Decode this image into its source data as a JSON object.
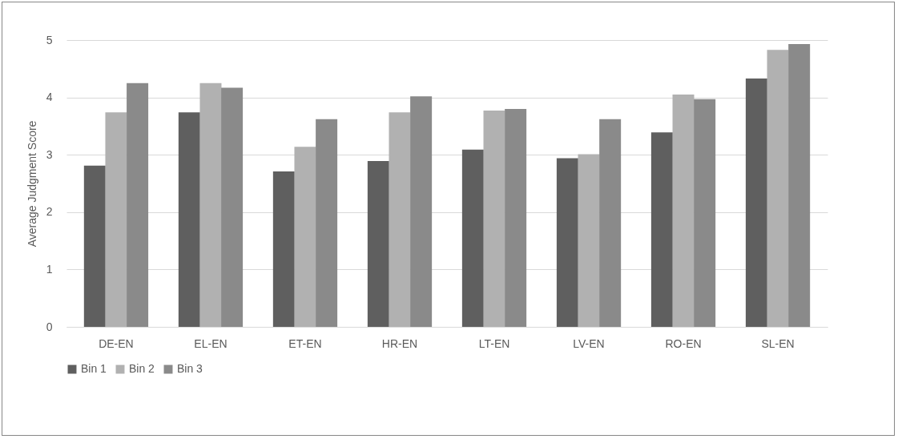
{
  "chart_data": {
    "type": "bar",
    "ylabel": "Average Judgment Score",
    "categories": [
      "DE-EN",
      "EL-EN",
      "ET-EN",
      "HR-EN",
      "LT-EN",
      "LV-EN",
      "RO-EN",
      "SL-EN"
    ],
    "series": [
      {
        "name": "Bin 1",
        "color": "#5f5f5f",
        "values": [
          2.81,
          3.74,
          2.71,
          2.89,
          3.09,
          2.94,
          3.39,
          4.33
        ]
      },
      {
        "name": "Bin 2",
        "color": "#b1b1b1",
        "values": [
          3.74,
          4.25,
          3.14,
          3.74,
          3.77,
          3.01,
          4.05,
          4.83
        ]
      },
      {
        "name": "Bin 3",
        "color": "#8a8a8a",
        "values": [
          4.25,
          4.17,
          3.62,
          4.02,
          3.8,
          3.62,
          3.97,
          4.93
        ]
      }
    ],
    "ylim": [
      0,
      5
    ],
    "yticks": [
      0,
      1,
      2,
      3,
      4,
      5
    ],
    "grid": "y",
    "legend": "bottom"
  }
}
